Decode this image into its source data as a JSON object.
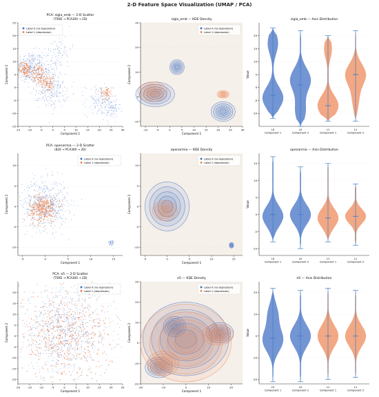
{
  "figure": {
    "suptitle": "2-D Feature Space Visualization (UMAP / PCA)",
    "colors": {
      "label0": "#4472c4",
      "label1": "#ed8b5b",
      "kde_bg": "#f6f0ea",
      "grid": "#dddddd"
    }
  },
  "chart_data": [
    {
      "type": "scatter",
      "panel": "A1",
      "title": "PCA: sigla_emb — 2-D Scatter",
      "subtitle": "(T5RD → PCA300 → 2D)",
      "xlabel": "Component 1",
      "ylabel": "Component 2",
      "xlim": [
        -15,
        30
      ],
      "ylim": [
        -15,
        25
      ],
      "xticks": [
        -15,
        -10,
        -5,
        0,
        5,
        10,
        15,
        20,
        25,
        30
      ],
      "yticks": [
        -15,
        -10,
        -5,
        0,
        5,
        10,
        15,
        20,
        25
      ],
      "legend": {
        "placement": "top-left",
        "entries": [
          "Label 0 (no depression)",
          "Label 1 (depression)"
        ]
      },
      "series": [
        {
          "name": "Label 0 (no depression)",
          "clusters": [
            {
              "cx": -10,
              "cy": 8,
              "sx": 3.0,
              "sy": 3.0,
              "n": 260
            },
            {
              "cx": -3,
              "cy": 5,
              "sx": 4.0,
              "sy": 4.0,
              "n": 220
            },
            {
              "cx": 0,
              "cy": -2,
              "sx": 3.0,
              "sy": 3.0,
              "n": 160
            },
            {
              "cx": 20,
              "cy": -5,
              "sx": 3.0,
              "sy": 3.0,
              "n": 130
            },
            {
              "cx": 25,
              "cy": -8,
              "sx": 2.0,
              "sy": 2.0,
              "n": 90
            },
            {
              "cx": 3,
              "cy": 15,
              "sx": 2.5,
              "sy": 2.5,
              "n": 60
            }
          ]
        },
        {
          "name": "Label 1 (depression)",
          "clusters": [
            {
              "cx": -12,
              "cy": 7,
              "sx": 1.5,
              "sy": 1.5,
              "n": 110
            },
            {
              "cx": -6,
              "cy": 5,
              "sx": 1.8,
              "sy": 1.8,
              "n": 90
            },
            {
              "cx": -2,
              "cy": 2,
              "sx": 1.5,
              "sy": 1.5,
              "n": 70
            },
            {
              "cx": 23,
              "cy": -2,
              "sx": 1.2,
              "sy": 1.2,
              "n": 50
            }
          ]
        }
      ]
    },
    {
      "type": "kde",
      "panel": "B1",
      "title": "sigla_emb — KDE Density",
      "xlabel": "Component 1",
      "ylabel": "Component 2",
      "xlim": [
        -12,
        30
      ],
      "ylim": [
        -12,
        30
      ],
      "xticks": [
        -10,
        -5,
        0,
        5,
        10,
        15,
        20,
        25,
        30
      ],
      "yticks": [
        -10,
        0,
        10,
        20,
        30
      ],
      "legend": {
        "placement": "top-right",
        "entries": [
          "Label 0 (no depression)",
          "Label 1 (depression)"
        ]
      },
      "series": [
        {
          "name": "Label 0 (no depression)",
          "peaks": [
            {
              "cx": -6,
              "cy": 1,
              "rx": 8,
              "ry": 5
            },
            {
              "cx": 22,
              "cy": -6,
              "rx": 5,
              "ry": 4
            },
            {
              "cx": 3,
              "cy": 12,
              "rx": 3,
              "ry": 3
            }
          ]
        },
        {
          "name": "Label 1 (depression)",
          "peaks": [
            {
              "cx": -7,
              "cy": 2,
              "rx": 6,
              "ry": 4
            },
            {
              "cx": 22,
              "cy": 1,
              "rx": 2.5,
              "ry": 1.5
            }
          ]
        }
      ]
    },
    {
      "type": "violin",
      "panel": "C1",
      "title": "sigla_emb — Axis Distribution",
      "ylabel": "Value",
      "ylim": [
        -15,
        25
      ],
      "yticks": [
        -10,
        -5,
        0,
        5,
        10,
        15,
        20
      ],
      "categories": [
        "L0",
        "L0",
        "L1",
        "L1"
      ],
      "components": [
        "Component 1",
        "Component 2",
        "Component 1",
        "Component 2"
      ],
      "violins": [
        {
          "color": "label0",
          "min": -12,
          "max": 23,
          "median": -3,
          "modes": [
            [
              -4,
              1.0
            ],
            [
              17,
              0.5
            ]
          ]
        },
        {
          "color": "label0",
          "min": -15,
          "max": 22,
          "median": 1,
          "modes": [
            [
              3,
              1.0
            ],
            [
              -9,
              0.5
            ]
          ]
        },
        {
          "color": "label1",
          "min": -13,
          "max": 20,
          "median": -7,
          "modes": [
            [
              -7,
              0.8
            ],
            [
              15,
              0.3
            ]
          ]
        },
        {
          "color": "label1",
          "min": -13,
          "max": 22,
          "median": 5,
          "modes": [
            [
              5,
              1.0
            ],
            [
              -5,
              0.3
            ]
          ]
        }
      ]
    },
    {
      "type": "scatter",
      "panel": "A2",
      "title": "PCA: openarmia — 2-D Scatter",
      "subtitle": "(820 → PCA300 → 2D)",
      "xlabel": "Component 1",
      "ylabel": "Component 2",
      "xlim": [
        -6,
        17
      ],
      "ylim": [
        -12,
        13
      ],
      "xticks": [
        -5,
        0,
        5,
        10,
        15
      ],
      "yticks": [
        -10,
        -5,
        0,
        5,
        10
      ],
      "legend": {
        "placement": "top-right",
        "entries": [
          "Label 0 (no depression)",
          "Label 1 (depression)"
        ]
      },
      "series": [
        {
          "name": "Label 0 (no depression)",
          "clusters": [
            {
              "cx": 0,
              "cy": 0.5,
              "sx": 2.5,
              "sy": 3.0,
              "n": 600
            },
            {
              "cx": 14.5,
              "cy": -9,
              "sx": 0.3,
              "sy": 0.5,
              "n": 40
            }
          ]
        },
        {
          "name": "Label 1 (depression)",
          "clusters": [
            {
              "cx": -0.5,
              "cy": -0.5,
              "sx": 1.5,
              "sy": 1.6,
              "n": 300
            }
          ]
        }
      ]
    },
    {
      "type": "kde",
      "panel": "B2",
      "title": "openarmia — KDE Density",
      "xlabel": "Component 1",
      "ylabel": "Component 2",
      "xlim": [
        -6,
        17
      ],
      "ylim": [
        -12,
        13
      ],
      "xticks": [
        -5,
        0,
        5,
        10,
        15
      ],
      "yticks": [
        -10,
        -5,
        0,
        5,
        10
      ],
      "legend": {
        "placement": "top-right",
        "entries": [
          "Label 0 (no depression)",
          "Label 1 (depression)"
        ]
      },
      "series": [
        {
          "name": "Label 0 (no depression)",
          "peaks": [
            {
              "cx": 0,
              "cy": 0,
              "rx": 5,
              "ry": 6
            },
            {
              "cx": 14.5,
              "cy": -9.5,
              "rx": 0.5,
              "ry": 0.7
            }
          ]
        },
        {
          "name": "Label 1 (depression)",
          "peaks": [
            {
              "cx": -0.5,
              "cy": -1,
              "rx": 2.8,
              "ry": 2.5
            }
          ]
        }
      ]
    },
    {
      "type": "violin",
      "panel": "C2",
      "title": "openarmia — Axis Distribution",
      "ylabel": "Value",
      "ylim": [
        -12,
        18
      ],
      "yticks": [
        -10,
        -5,
        0,
        5,
        10,
        15
      ],
      "categories": [
        "L0",
        "L0",
        "L1",
        "L1"
      ],
      "components": [
        "Component 1",
        "Component 2",
        "Component 1",
        "Component 2"
      ],
      "violins": [
        {
          "color": "label0",
          "min": -8,
          "max": 17,
          "median": 0,
          "modes": [
            [
              -0.5,
              1.0
            ]
          ]
        },
        {
          "color": "label0",
          "min": -10,
          "max": 14,
          "median": 0,
          "modes": [
            [
              0,
              1.0
            ]
          ]
        },
        {
          "color": "label1",
          "min": -8,
          "max": 15,
          "median": -1,
          "modes": [
            [
              -1,
              0.9
            ]
          ]
        },
        {
          "color": "label1",
          "min": -9,
          "max": 9,
          "median": -0.5,
          "modes": [
            [
              -0.5,
              0.8
            ]
          ]
        }
      ]
    },
    {
      "type": "scatter",
      "panel": "A3",
      "title": "PCA: e5 — 2-D Scatter",
      "subtitle": "(T5RD → PCA300 → 2D)",
      "xlabel": "Component 1",
      "ylabel": "Component 2",
      "xlim": [
        -20,
        25
      ],
      "ylim": [
        -22,
        25
      ],
      "xticks": [
        -20,
        -15,
        -10,
        -5,
        0,
        5,
        10,
        15,
        20,
        25
      ],
      "yticks": [
        -20,
        -15,
        -10,
        -5,
        0,
        5,
        10,
        15,
        20
      ],
      "legend": {
        "placement": "top-right",
        "entries": [
          "Label 0 (no depression)",
          "Label 1 (depression)"
        ]
      },
      "series": [
        {
          "name": "Label 0 (no depression)",
          "clusters": [
            {
              "cx": 0,
              "cy": 2,
              "sx": 10,
              "sy": 10,
              "n": 900
            }
          ]
        },
        {
          "name": "Label 1 (depression)",
          "clusters": [
            {
              "cx": 0,
              "cy": 0,
              "sx": 10,
              "sy": 10,
              "n": 500
            }
          ]
        }
      ]
    },
    {
      "type": "kde",
      "panel": "B3",
      "title": "e5 — KDE Density",
      "xlabel": "Component 1",
      "ylabel": "Component 2",
      "xlim": [
        -20,
        25
      ],
      "ylim": [
        -20,
        30
      ],
      "xticks": [
        -20,
        -10,
        0,
        10,
        20
      ],
      "yticks": [
        -20,
        -10,
        0,
        10,
        20,
        30
      ],
      "legend": {
        "placement": "top-right",
        "entries": [
          "Label 0 (no depression)",
          "Label 1 (depression)"
        ]
      },
      "series": [
        {
          "name": "Label 0 (no depression)",
          "peaks": [
            {
              "cx": 0,
              "cy": 2,
              "rx": 19,
              "ry": 18
            },
            {
              "cx": -12,
              "cy": -12,
              "rx": 6,
              "ry": 5
            },
            {
              "cx": 15,
              "cy": 5,
              "rx": 6,
              "ry": 5
            },
            {
              "cx": -5,
              "cy": 8,
              "rx": 5,
              "ry": 5
            }
          ]
        },
        {
          "name": "Label 1 (depression)",
          "peaks": [
            {
              "cx": 0,
              "cy": 0,
              "rx": 20,
              "ry": 19
            },
            {
              "cx": -10,
              "cy": -10,
              "rx": 7,
              "ry": 6
            },
            {
              "cx": 14,
              "cy": 4,
              "rx": 7,
              "ry": 5
            }
          ]
        }
      ]
    },
    {
      "type": "violin",
      "panel": "C3",
      "title": "e5 — Axis Distribution",
      "ylabel": "Value",
      "ylim": [
        -22,
        25
      ],
      "yticks": [
        -20,
        -10,
        0,
        10,
        20
      ],
      "categories": [
        "L0",
        "L0",
        "L1",
        "L1"
      ],
      "components": [
        "Component 1",
        "Component 2",
        "Component 1",
        "Component 2"
      ],
      "violins": [
        {
          "color": "label0",
          "min": -21,
          "max": 22,
          "median": -1,
          "modes": [
            [
              -2,
              1.0
            ],
            [
              10,
              0.5
            ]
          ]
        },
        {
          "color": "label0",
          "min": -21,
          "max": 21,
          "median": 0,
          "modes": [
            [
              0,
              1.0
            ]
          ]
        },
        {
          "color": "label1",
          "min": -20,
          "max": 22,
          "median": 0,
          "modes": [
            [
              0,
              1.0
            ]
          ]
        },
        {
          "color": "label1",
          "min": -19,
          "max": 21,
          "median": 0,
          "modes": [
            [
              0,
              0.9
            ]
          ]
        }
      ]
    }
  ]
}
